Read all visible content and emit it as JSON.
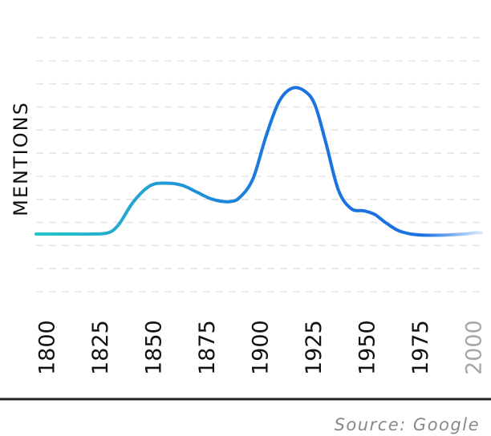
{
  "chart_data": {
    "type": "line",
    "ylabel": "MENTIONS",
    "xlabel": "",
    "x_ticks": [
      "1800",
      "1825",
      "1850",
      "1875",
      "1900",
      "1925",
      "1950",
      "1975",
      "2000"
    ],
    "x_ticks_faded": [
      "2000"
    ],
    "xlim": [
      1800,
      2000
    ],
    "ylim": [
      -2.5,
      8.5
    ],
    "grid": true,
    "series": [
      {
        "x": [
          1800,
          1810,
          1820,
          1828,
          1833,
          1840,
          1848,
          1856,
          1863,
          1870,
          1877,
          1885,
          1890,
          1896,
          1902,
          1908,
          1914,
          1920,
          1925,
          1930,
          1936,
          1942,
          1948,
          1953,
          1958,
          1964,
          1970,
          1976,
          1985,
          1995,
          2000
        ],
        "y": [
          0,
          0,
          0,
          0.05,
          0.4,
          1.4,
          2.1,
          2.2,
          2.1,
          1.8,
          1.5,
          1.4,
          1.6,
          2.4,
          4.2,
          5.7,
          6.3,
          6.2,
          5.6,
          4.0,
          1.9,
          1.1,
          1.0,
          0.85,
          0.5,
          0.15,
          0.0,
          -0.05,
          -0.05,
          0.0,
          0.05
        ],
        "color_start": "#25c6c9",
        "color_end": "#1a73e0",
        "fade_after_x": 1976
      }
    ],
    "source": "Source: Google"
  }
}
